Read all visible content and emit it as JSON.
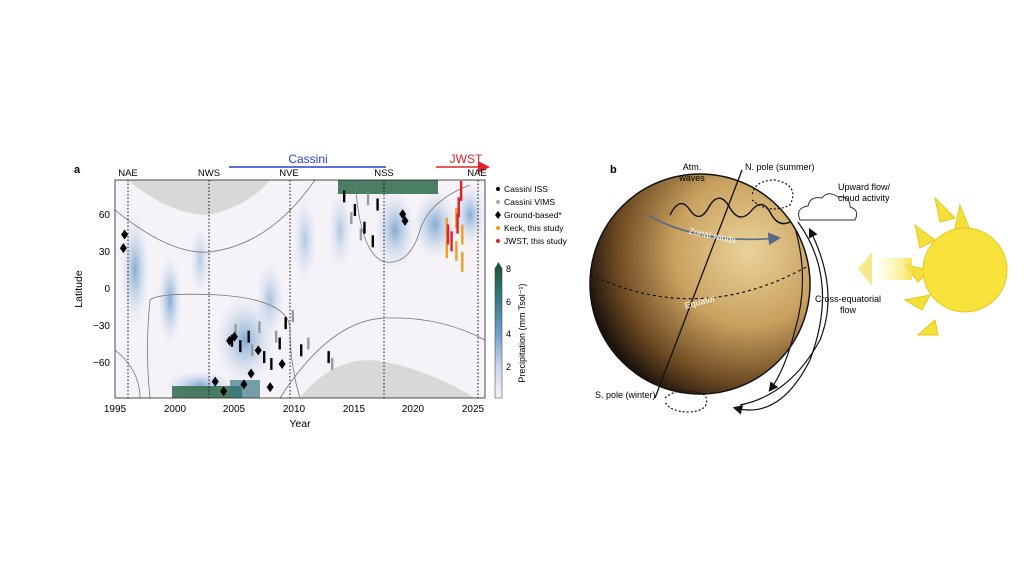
{
  "panel_a": {
    "label": "a",
    "missions": {
      "cassini": {
        "label": "Cassini",
        "color": "#2a3fd0"
      },
      "jwst": {
        "label": "JWST",
        "color": "#e0202a"
      }
    },
    "events": [
      "NAE",
      "NWS",
      "NVE",
      "NSS",
      "NAE"
    ],
    "xlabel": "Year",
    "ylabel": "Latitude",
    "xticks": [
      "1995",
      "2000",
      "2005",
      "2010",
      "2015",
      "2020",
      "2025"
    ],
    "yticks": [
      "60",
      "30",
      "0",
      "−30",
      "−60"
    ],
    "colorbar": {
      "label": "Precipitation (mm Tsol⁻¹)",
      "ticks": [
        "8",
        "6",
        "4",
        "2"
      ],
      "colors": [
        "#f4f1f7",
        "#c7d6e8",
        "#6f9fcc",
        "#3a7a86",
        "#1f5a3c"
      ]
    },
    "legend": [
      {
        "label": "Cassini ISS",
        "marker": "dot",
        "color": "#000000"
      },
      {
        "label": "Cassini VIMS",
        "marker": "dot",
        "color": "#aaaaaa"
      },
      {
        "label": "Ground-based*",
        "marker": "diamond",
        "color": "#000000"
      },
      {
        "label": "Keck, this study",
        "marker": "dot",
        "color": "#f0a020"
      },
      {
        "label": "JWST, this study",
        "marker": "dot",
        "color": "#e0202a"
      }
    ]
  },
  "panel_b": {
    "label": "b",
    "labels": {
      "atm_waves_1": "Atm.",
      "atm_waves_2": "waves",
      "n_pole": "N. pole (summer)",
      "upward_1": "Upward flow/",
      "upward_2": "cloud activity",
      "zonal": "Zonal winds",
      "equator": "Equator",
      "cross_1": "Cross-equatorial",
      "cross_2": "flow",
      "s_pole": "S. pole (winter)"
    }
  },
  "chart_data": {
    "type": "heatmap",
    "xlabel": "Year",
    "ylabel": "Latitude",
    "xlim": [
      1995,
      2026
    ],
    "ylim": [
      -80,
      80
    ],
    "colorbar_range": [
      0,
      8
    ],
    "event_lines": [
      {
        "label": "NAE",
        "year": 1996
      },
      {
        "label": "NWS",
        "year": 2002.8
      },
      {
        "label": "NVE",
        "year": 2009.6
      },
      {
        "label": "NSS",
        "year": 2017.4
      },
      {
        "label": "NAE",
        "year": 2025.5
      }
    ],
    "series": [
      {
        "name": "Cassini ISS",
        "points": [
          [
            2004.8,
            -38
          ],
          [
            2005.5,
            -42
          ],
          [
            2006.2,
            -35
          ],
          [
            2007.5,
            -50
          ],
          [
            2008.1,
            -55
          ],
          [
            2008.8,
            -40
          ],
          [
            2009.3,
            -25
          ],
          [
            2010.6,
            -45
          ],
          [
            2012.9,
            -50
          ],
          [
            2014.2,
            68
          ],
          [
            2015.1,
            58
          ],
          [
            2015.9,
            45
          ],
          [
            2016.6,
            35
          ],
          [
            2017.0,
            62
          ]
        ]
      },
      {
        "name": "Cassini VIMS",
        "points": [
          [
            2005.1,
            -30
          ],
          [
            2006.5,
            -45
          ],
          [
            2007.1,
            -28
          ],
          [
            2008.5,
            -35
          ],
          [
            2009.9,
            -20
          ],
          [
            2011.2,
            -40
          ],
          [
            2013.2,
            -55
          ],
          [
            2014.8,
            52
          ],
          [
            2015.6,
            40
          ],
          [
            2016.2,
            66
          ]
        ]
      },
      {
        "name": "Ground-based*",
        "points": [
          [
            1995.8,
            40
          ],
          [
            1995.7,
            30
          ],
          [
            2003.4,
            -68
          ],
          [
            2004.1,
            -75
          ],
          [
            2004.6,
            -38
          ],
          [
            2005.0,
            -35
          ],
          [
            2005.8,
            -70
          ],
          [
            2006.4,
            -62
          ],
          [
            2007.0,
            -45
          ],
          [
            2008.0,
            -72
          ],
          [
            2009.0,
            -55
          ],
          [
            2019.1,
            55
          ],
          [
            2019.3,
            50
          ]
        ]
      },
      {
        "name": "Keck, this study",
        "points": [
          [
            2022.8,
            45
          ],
          [
            2022.8,
            30
          ],
          [
            2023.6,
            52
          ],
          [
            2023.6,
            28
          ],
          [
            2024.1,
            40
          ],
          [
            2024.1,
            20
          ]
        ]
      },
      {
        "name": "JWST, this study",
        "points": [
          [
            2022.9,
            40
          ],
          [
            2023.2,
            35
          ],
          [
            2023.7,
            48
          ],
          [
            2023.8,
            60
          ],
          [
            2024.0,
            72
          ]
        ]
      }
    ]
  }
}
